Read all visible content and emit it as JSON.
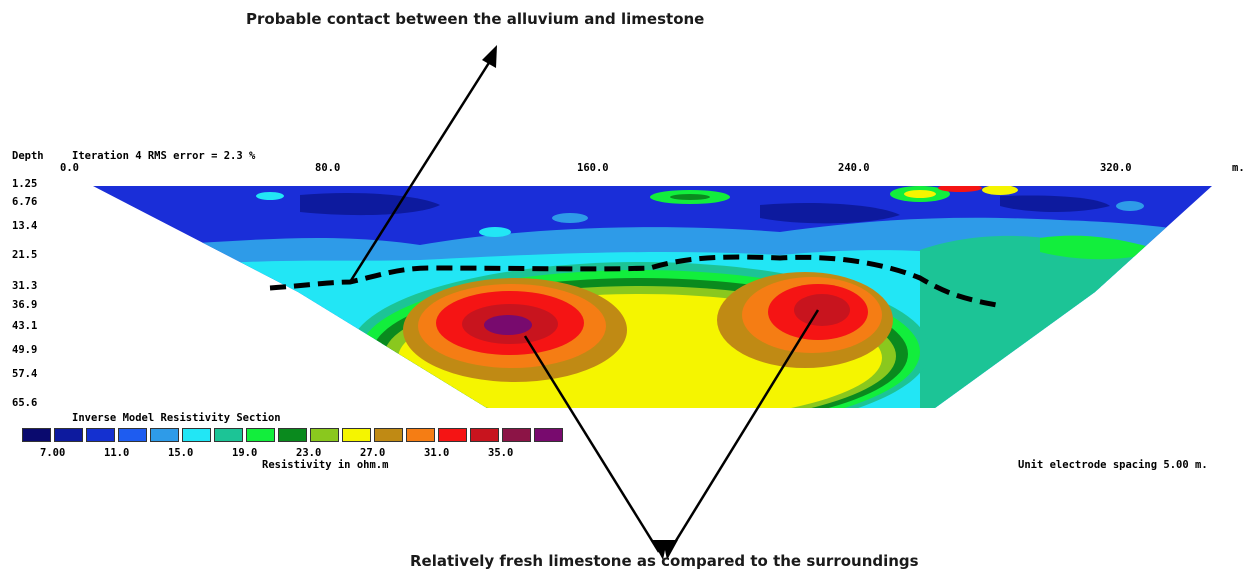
{
  "annotations": {
    "top": "Probable contact between the alluvium and limestone",
    "bottom": "Relatively fresh limestone as compared to the surroundings"
  },
  "section": {
    "depth_label": "Depth",
    "iteration_text": "Iteration 4 RMS error = 2.3 %",
    "x_ticks": [
      "0.0",
      "80.0",
      "160.0",
      "240.0",
      "320.0"
    ],
    "x_unit": "m.",
    "depth_ticks": [
      "1.25",
      "6.76",
      "13.4",
      "21.5",
      "31.3",
      "36.9",
      "43.1",
      "49.9",
      "57.4",
      "65.6"
    ],
    "section_title": "Inverse Model Resistivity Section",
    "resistivity_unit_label": "Resistivity in ohm.m",
    "electrode_spacing": "Unit electrode spacing 5.00 m."
  },
  "legend": {
    "colors": [
      "#0a0a6e",
      "#0d1a9e",
      "#1430d0",
      "#1e5cf0",
      "#2e9be8",
      "#22e6f5",
      "#1cc496",
      "#12ee3c",
      "#0a8a1e",
      "#8ac81e",
      "#f5f500",
      "#c08a14",
      "#f57d14",
      "#f51414",
      "#c8141e",
      "#8c1446",
      "#780a6e"
    ],
    "labels": [
      "7.00",
      "11.0",
      "15.0",
      "19.0",
      "23.0",
      "27.0",
      "31.0",
      "35.0"
    ]
  },
  "colors": {
    "background_blue": "#1a2ed8",
    "contact_line": "#000000"
  }
}
